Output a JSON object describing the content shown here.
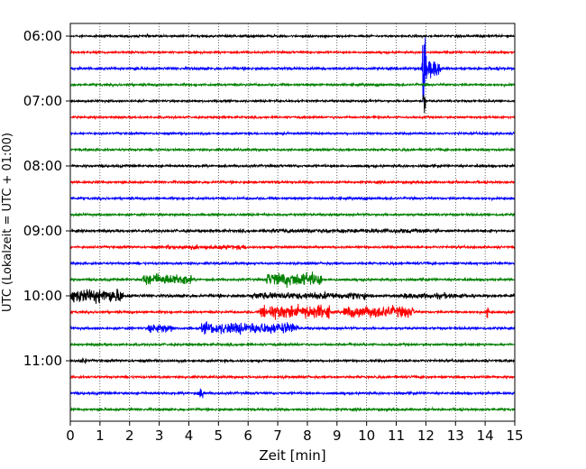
{
  "chart_data": {
    "type": "line",
    "xlabel": "Zeit  [min]",
    "ylabel": "UTC (Lokalzeit = UTC + 01:00)",
    "xlim": [
      0,
      15
    ],
    "x_ticks": [
      0,
      1,
      2,
      3,
      4,
      5,
      6,
      7,
      8,
      9,
      10,
      11,
      12,
      13,
      14,
      15
    ],
    "y_tick_labels": [
      "06:00",
      "07:00",
      "08:00",
      "09:00",
      "10:00",
      "11:00"
    ],
    "y_tick_line_index": [
      0,
      4,
      8,
      12,
      16,
      20
    ],
    "trace_colors": [
      "#000000",
      "#ff0000",
      "#0000ff",
      "#008000"
    ],
    "line_spacing_minutes": 15,
    "traces": [
      {
        "start": "06:00",
        "color": "#000000",
        "amplitude": 0.9,
        "bursts": []
      },
      {
        "start": "06:15",
        "color": "#ff0000",
        "amplitude": 0.9,
        "bursts": []
      },
      {
        "start": "06:30",
        "color": "#0000ff",
        "amplitude": 1.1,
        "bursts": [
          {
            "from": 11.85,
            "to": 12.05,
            "amp": 28
          },
          {
            "from": 12.05,
            "to": 12.5,
            "amp": 8
          }
        ]
      },
      {
        "start": "06:45",
        "color": "#008000",
        "amplitude": 1.0,
        "bursts": []
      },
      {
        "start": "07:00",
        "color": "#000000",
        "amplitude": 0.9,
        "bursts": [
          {
            "from": 11.9,
            "to": 12.0,
            "amp": 12
          }
        ]
      },
      {
        "start": "07:15",
        "color": "#ff0000",
        "amplitude": 0.9,
        "bursts": []
      },
      {
        "start": "07:30",
        "color": "#0000ff",
        "amplitude": 0.9,
        "bursts": []
      },
      {
        "start": "07:45",
        "color": "#008000",
        "amplitude": 1.0,
        "bursts": []
      },
      {
        "start": "08:00",
        "color": "#000000",
        "amplitude": 1.0,
        "bursts": []
      },
      {
        "start": "08:15",
        "color": "#ff0000",
        "amplitude": 1.0,
        "bursts": []
      },
      {
        "start": "08:30",
        "color": "#0000ff",
        "amplitude": 1.0,
        "bursts": []
      },
      {
        "start": "08:45",
        "color": "#008000",
        "amplitude": 1.0,
        "bursts": []
      },
      {
        "start": "09:00",
        "color": "#000000",
        "amplitude": 1.1,
        "bursts": [
          {
            "from": 6.5,
            "to": 12.5,
            "amp": 1.8
          }
        ]
      },
      {
        "start": "09:15",
        "color": "#ff0000",
        "amplitude": 1.0,
        "bursts": [
          {
            "from": 3.2,
            "to": 6.0,
            "amp": 1.9
          }
        ]
      },
      {
        "start": "09:30",
        "color": "#0000ff",
        "amplitude": 1.0,
        "bursts": []
      },
      {
        "start": "09:45",
        "color": "#008000",
        "amplitude": 1.0,
        "bursts": [
          {
            "from": 2.4,
            "to": 4.1,
            "amp": 5
          },
          {
            "from": 6.6,
            "to": 8.5,
            "amp": 6
          }
        ]
      },
      {
        "start": "10:00",
        "color": "#000000",
        "amplitude": 1.2,
        "bursts": [
          {
            "from": 0.0,
            "to": 1.8,
            "amp": 6
          },
          {
            "from": 6.1,
            "to": 10.0,
            "amp": 3
          },
          {
            "from": 11.2,
            "to": 13.3,
            "amp": 2.5
          }
        ]
      },
      {
        "start": "10:15",
        "color": "#ff0000",
        "amplitude": 1.0,
        "bursts": [
          {
            "from": 6.4,
            "to": 8.8,
            "amp": 6
          },
          {
            "from": 9.2,
            "to": 11.6,
            "amp": 5
          },
          {
            "from": 14.05,
            "to": 14.12,
            "amp": 13
          }
        ]
      },
      {
        "start": "10:30",
        "color": "#0000ff",
        "amplitude": 1.0,
        "bursts": [
          {
            "from": 2.6,
            "to": 3.5,
            "amp": 4
          },
          {
            "from": 4.4,
            "to": 7.7,
            "amp": 5
          }
        ]
      },
      {
        "start": "10:45",
        "color": "#008000",
        "amplitude": 1.0,
        "bursts": []
      },
      {
        "start": "11:00",
        "color": "#000000",
        "amplitude": 1.0,
        "bursts": [
          {
            "from": 0.3,
            "to": 0.6,
            "amp": 2.5
          }
        ]
      },
      {
        "start": "11:15",
        "color": "#ff0000",
        "amplitude": 1.0,
        "bursts": []
      },
      {
        "start": "11:30",
        "color": "#0000ff",
        "amplitude": 1.0,
        "bursts": [
          {
            "from": 4.3,
            "to": 4.55,
            "amp": 5
          }
        ]
      },
      {
        "start": "11:45",
        "color": "#008000",
        "amplitude": 1.0,
        "bursts": []
      }
    ],
    "grid": "vertical-dotted",
    "legend": "none"
  }
}
